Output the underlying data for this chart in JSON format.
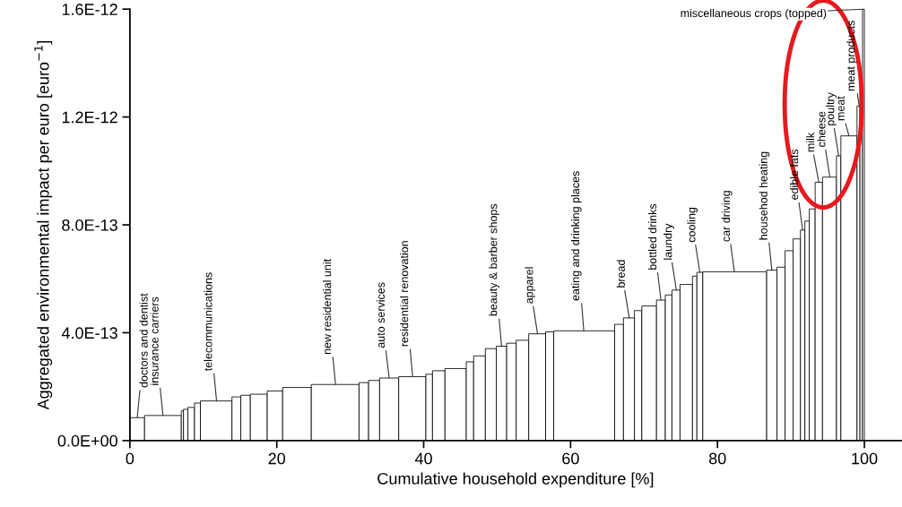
{
  "chart_data": {
    "type": "histogram",
    "xlabel": "Cumulative household expenditure [%]",
    "ylabel": "Aggregated environmental impact per euro [euro$^{−1}$]",
    "bins": [
      0,
      2.0,
      7.0,
      7.3,
      7.9,
      8.8,
      9.6,
      13.9,
      15.1,
      16.4,
      18.7,
      20.8,
      24.7,
      31.2,
      32.5,
      34.0,
      36.6,
      40.3,
      41.2,
      42.9,
      45.8,
      46.8,
      48.4,
      49.9,
      51.3,
      52.6,
      54.3,
      56.6,
      57.7,
      66.0,
      67.2,
      68.7,
      69.7,
      71.7,
      72.9,
      73.8,
      74.9,
      76.6,
      77.2,
      78.0,
      86.7,
      88.1,
      89.2,
      90.3,
      91.3,
      91.9,
      92.5,
      93.3,
      94.3,
      96.2,
      96.8,
      99.0,
      99.4,
      99.75,
      100
    ],
    "values": [
      8.5e-14,
      9.3e-14,
      1.1e-13,
      1.16e-13,
      1.23e-13,
      1.39e-13,
      1.47e-13,
      1.62e-13,
      1.68e-13,
      1.72e-13,
      1.84e-13,
      1.97e-13,
      2.08e-13,
      2.15e-13,
      2.23e-13,
      2.32e-13,
      2.37e-13,
      2.46e-13,
      2.59e-13,
      2.67e-13,
      2.92e-13,
      3.14e-13,
      3.41e-13,
      3.5e-13,
      3.61e-13,
      3.72e-13,
      3.96e-13,
      4.03e-13,
      4.07e-13,
      4.31e-13,
      4.55e-13,
      4.82e-13,
      4.99e-13,
      5.21e-13,
      5.4e-13,
      5.58e-13,
      5.79e-13,
      6.1e-13,
      6.24e-13,
      6.26e-13,
      6.32e-13,
      6.43e-13,
      7.04e-13,
      7.48e-13,
      7.81e-13,
      8.14e-13,
      8.59e-13,
      9.58e-13,
      9.77e-13,
      1.056e-12,
      1.13e-12,
      1.24e-12,
      1.3e-12,
      1.6e-12
    ],
    "color": "#ffffff",
    "xlim": [
      0,
      105
    ],
    "xticks": [
      0,
      20,
      40,
      60,
      80,
      100
    ],
    "ylim": [
      0,
      1.6e-12
    ],
    "yticks": [
      {
        "value": 0,
        "label": "0.0E+00"
      },
      {
        "value": 4e-13,
        "label": "4.0E-13"
      },
      {
        "value": 8e-13,
        "label": "8.0E-13"
      },
      {
        "value": 1.2e-12,
        "label": "1.2E-12"
      },
      {
        "value": 1.6e-12,
        "label": "1.6E-12"
      }
    ],
    "grid": false,
    "annotations": [
      {
        "text": "doctors and dentist",
        "x": 1.0,
        "y": 8.5e-14
      },
      {
        "text": "insurance carriers",
        "x": 4.5,
        "y": 9.3e-14
      },
      {
        "text": "telecommunications",
        "x": 11.8,
        "y": 1.47e-13
      },
      {
        "text": "new residential unit",
        "x": 28.0,
        "y": 2.08e-13
      },
      {
        "text": "auto services",
        "x": 35.3,
        "y": 2.32e-13
      },
      {
        "text": "residential renovation",
        "x": 38.5,
        "y": 2.37e-13
      },
      {
        "text": "beauty & barber shops",
        "x": 50.6,
        "y": 3.5e-13
      },
      {
        "text": "apparel",
        "x": 55.5,
        "y": 3.96e-13
      },
      {
        "text": "eating and drinking places",
        "x": 61.8,
        "y": 4.07e-13
      },
      {
        "text": "bread",
        "x": 68.0,
        "y": 4.55e-13
      },
      {
        "text": "bottled drinks",
        "x": 72.3,
        "y": 5.21e-13
      },
      {
        "text": "laundry",
        "x": 74.4,
        "y": 5.58e-13
      },
      {
        "text": "cooling",
        "x": 77.6,
        "y": 6.24e-13
      },
      {
        "text": "car driving",
        "x": 82.3,
        "y": 6.26e-13
      },
      {
        "text": "househod heating",
        "x": 87.4,
        "y": 6.32e-13
      },
      {
        "text": "edible fats",
        "x": 91.6,
        "y": 7.81e-13
      },
      {
        "text": "milk",
        "x": 93.8,
        "y": 9.58e-13
      },
      {
        "text": "cheese",
        "x": 95.3,
        "y": 9.77e-13
      },
      {
        "text": "poultry",
        "x": 96.5,
        "y": 1.056e-12
      },
      {
        "text": "meat",
        "x": 97.9,
        "y": 1.13e-12
      },
      {
        "text": "meat products",
        "x": 99.3,
        "y": 1.24e-12
      },
      {
        "text": "miscellaneous crops (topped)",
        "x": 99.95,
        "y": 1.6e-12
      }
    ]
  }
}
